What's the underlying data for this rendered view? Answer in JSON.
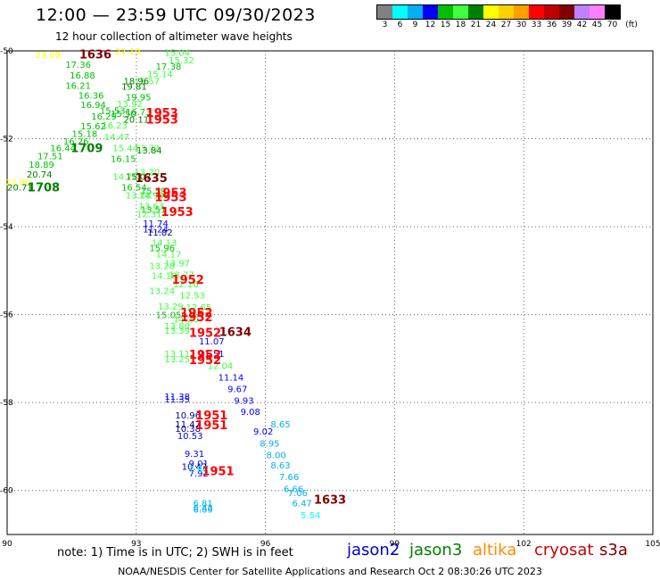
{
  "title": "12:00 — 23:59 UTC 09/30/2023",
  "subtitle": "12 hour collection of altimeter wave heights",
  "scale": {
    "colors": [
      "#808080",
      "#00ffff",
      "#00b0f0",
      "#0000ff",
      "#00c000",
      "#40ff40",
      "#008000",
      "#ffff00",
      "#ffd000",
      "#ffa000",
      "#ff0000",
      "#c00000",
      "#800000",
      "#c080ff",
      "#ff80ff",
      "#000000"
    ],
    "labels": [
      "3",
      "6",
      "9",
      "12",
      "15",
      "18",
      "21",
      "24",
      "27",
      "30",
      "33",
      "36",
      "39",
      "42",
      "45",
      "70"
    ],
    "unit": "(ft)"
  },
  "axes": {
    "x_ticks": [
      "90",
      "93",
      "96",
      "99",
      "102",
      "105"
    ],
    "y_ticks": [
      "-50",
      "-52",
      "-54",
      "-56",
      "-58",
      "-60"
    ]
  },
  "observations": [
    {
      "t": "23.09",
      "x": 90.95,
      "y": -50.08,
      "c": "#ffff00"
    },
    {
      "t": "22.19",
      "x": 92.8,
      "y": -50.0,
      "c": "#ffff00"
    },
    {
      "t": "15.04",
      "x": 93.95,
      "y": -50.03,
      "c": "#40ff40"
    },
    {
      "t": "15.32",
      "x": 94.05,
      "y": -50.2,
      "c": "#40ff40"
    },
    {
      "t": "17.36",
      "x": 91.65,
      "y": -50.3,
      "c": "#00c000"
    },
    {
      "t": "17.38",
      "x": 93.75,
      "y": -50.35,
      "c": "#00c000"
    },
    {
      "t": "15.14",
      "x": 93.55,
      "y": -50.52,
      "c": "#40ff40"
    },
    {
      "t": "16.88",
      "x": 91.75,
      "y": -50.55,
      "c": "#00c000"
    },
    {
      "t": "15.57",
      "x": 93.25,
      "y": -50.68,
      "c": "#40ff40"
    },
    {
      "t": "16.21",
      "x": 91.65,
      "y": -50.78,
      "c": "#00c000"
    },
    {
      "t": "18.96",
      "x": 93.0,
      "y": -50.68,
      "c": "#008000"
    },
    {
      "t": "19.81",
      "x": 92.95,
      "y": -50.8,
      "c": "#008000"
    },
    {
      "t": "16.36",
      "x": 91.95,
      "y": -51.0,
      "c": "#00c000"
    },
    {
      "t": "19.95",
      "x": 93.05,
      "y": -51.05,
      "c": "#00c000"
    },
    {
      "t": "13.92",
      "x": 92.85,
      "y": -51.2,
      "c": "#40ff40"
    },
    {
      "t": "16.94",
      "x": 92.0,
      "y": -51.22,
      "c": "#00c000"
    },
    {
      "t": "15.53",
      "x": 92.45,
      "y": -51.35,
      "c": "#00c000"
    },
    {
      "t": "16.73",
      "x": 93.05,
      "y": -51.38,
      "c": "#00c000"
    },
    {
      "t": "16.29",
      "x": 92.25,
      "y": -51.48,
      "c": "#00c000"
    },
    {
      "t": "15.50",
      "x": 92.7,
      "y": -51.42,
      "c": "#00c000"
    },
    {
      "t": "20.11",
      "x": 93.0,
      "y": -51.55,
      "c": "#008000"
    },
    {
      "t": "16.23",
      "x": 92.5,
      "y": -51.68,
      "c": "#40ff40"
    },
    {
      "t": "15.62",
      "x": 92.0,
      "y": -51.7,
      "c": "#00c000"
    },
    {
      "t": "15.18",
      "x": 91.8,
      "y": -51.88,
      "c": "#00c000"
    },
    {
      "t": "14.47",
      "x": 92.55,
      "y": -51.95,
      "c": "#40ff40"
    },
    {
      "t": "16.26",
      "x": 91.6,
      "y": -52.05,
      "c": "#00c000"
    },
    {
      "t": "16.44",
      "x": 91.3,
      "y": -52.2,
      "c": "#00c000"
    },
    {
      "t": "15.44",
      "x": 92.75,
      "y": -52.2,
      "c": "#40ff40"
    },
    {
      "t": "13.72",
      "x": 93.25,
      "y": -52.2,
      "c": "#40ff40"
    },
    {
      "t": "13.84",
      "x": 93.3,
      "y": -52.25,
      "c": "#008000"
    },
    {
      "t": "17.51",
      "x": 91.0,
      "y": -52.38,
      "c": "#00c000"
    },
    {
      "t": "16.15",
      "x": 92.7,
      "y": -52.45,
      "c": "#00c000"
    },
    {
      "t": "18.89",
      "x": 90.8,
      "y": -52.58,
      "c": "#00c000"
    },
    {
      "t": "20.74",
      "x": 90.75,
      "y": -52.8,
      "c": "#008000"
    },
    {
      "t": "14.78",
      "x": 92.75,
      "y": -52.85,
      "c": "#40ff40"
    },
    {
      "t": "13.20",
      "x": 93.25,
      "y": -52.75,
      "c": "#40ff40"
    },
    {
      "t": "15.07",
      "x": 93.05,
      "y": -52.85,
      "c": "#008000"
    },
    {
      "t": "22.80",
      "x": 90.25,
      "y": -52.98,
      "c": "#ffff00"
    },
    {
      "t": "20.71",
      "x": 90.3,
      "y": -53.1,
      "c": "#008000"
    },
    {
      "t": "16.54",
      "x": 92.95,
      "y": -53.1,
      "c": "#00c000"
    },
    {
      "t": "15.59",
      "x": 93.4,
      "y": -53.18,
      "c": "#00c000"
    },
    {
      "t": "13.18",
      "x": 93.05,
      "y": -53.28,
      "c": "#40ff40"
    },
    {
      "t": "14.90",
      "x": 93.35,
      "y": -53.28,
      "c": "#40ff40"
    },
    {
      "t": "13.63",
      "x": 93.35,
      "y": -53.52,
      "c": "#40ff40"
    },
    {
      "t": "13.51",
      "x": 93.4,
      "y": -53.6,
      "c": "#00c000"
    },
    {
      "t": "12.31",
      "x": 93.3,
      "y": -53.7,
      "c": "#40ff40"
    },
    {
      "t": "11.74",
      "x": 93.45,
      "y": -53.92,
      "c": "#0000ff"
    },
    {
      "t": "11.24",
      "x": 93.45,
      "y": -54.05,
      "c": "#0000ff"
    },
    {
      "t": "11.82",
      "x": 93.55,
      "y": -54.12,
      "c": "#00008b"
    },
    {
      "t": "14.13",
      "x": 93.65,
      "y": -54.35,
      "c": "#40ff40"
    },
    {
      "t": "15.96",
      "x": 93.6,
      "y": -54.48,
      "c": "#00c000"
    },
    {
      "t": "14.17",
      "x": 93.75,
      "y": -54.62,
      "c": "#40ff40"
    },
    {
      "t": "13.97",
      "x": 93.95,
      "y": -54.82,
      "c": "#40ff40"
    },
    {
      "t": "13.28",
      "x": 93.6,
      "y": -54.88,
      "c": "#40ff40"
    },
    {
      "t": "14.10",
      "x": 93.65,
      "y": -55.1,
      "c": "#40ff40"
    },
    {
      "t": "13.77",
      "x": 94.05,
      "y": -55.08,
      "c": "#40ff40"
    },
    {
      "t": "12.16",
      "x": 94.15,
      "y": -55.3,
      "c": "#40ff40"
    },
    {
      "t": "13.24",
      "x": 93.6,
      "y": -55.45,
      "c": "#40ff40"
    },
    {
      "t": "12.53",
      "x": 94.3,
      "y": -55.55,
      "c": "#40ff40"
    },
    {
      "t": "13.29",
      "x": 93.8,
      "y": -55.8,
      "c": "#40ff40"
    },
    {
      "t": "12.65",
      "x": 94.45,
      "y": -55.82,
      "c": "#40ff40"
    },
    {
      "t": "15.05",
      "x": 93.75,
      "y": -56.0,
      "c": "#00c000"
    },
    {
      "t": "14.20",
      "x": 94.15,
      "y": -56.1,
      "c": "#40ff40"
    },
    {
      "t": "13.80",
      "x": 93.95,
      "y": -56.25,
      "c": "#40ff40"
    },
    {
      "t": "13.39",
      "x": 93.95,
      "y": -56.35,
      "c": "#40ff40"
    },
    {
      "t": "11.07",
      "x": 94.75,
      "y": -56.6,
      "c": "#0000ff"
    },
    {
      "t": "13.11",
      "x": 93.95,
      "y": -56.88,
      "c": "#40ff40"
    },
    {
      "t": "13.25",
      "x": 93.95,
      "y": -57.0,
      "c": "#40ff40"
    },
    {
      "t": "11.51",
      "x": 94.75,
      "y": -56.88,
      "c": "#0000ff"
    },
    {
      "t": "12.04",
      "x": 94.95,
      "y": -57.15,
      "c": "#40ff40"
    },
    {
      "t": "11.14",
      "x": 95.2,
      "y": -57.42,
      "c": "#0000ff"
    },
    {
      "t": "9.67",
      "x": 95.35,
      "y": -57.68,
      "c": "#0000ff"
    },
    {
      "t": "11.38",
      "x": 93.95,
      "y": -57.85,
      "c": "#0000ff"
    },
    {
      "t": "11.35",
      "x": 93.95,
      "y": -57.92,
      "c": "#0000ff"
    },
    {
      "t": "9.93",
      "x": 95.5,
      "y": -57.95,
      "c": "#0000ff"
    },
    {
      "t": "9.08",
      "x": 95.65,
      "y": -58.2,
      "c": "#0000ff"
    },
    {
      "t": "10.96",
      "x": 94.2,
      "y": -58.28,
      "c": "#00008b"
    },
    {
      "t": "11.47",
      "x": 94.2,
      "y": -58.48,
      "c": "#00008b"
    },
    {
      "t": "8.65",
      "x": 96.35,
      "y": -58.48,
      "c": "#00b0f0"
    },
    {
      "t": "10.38",
      "x": 94.2,
      "y": -58.58,
      "c": "#00008b"
    },
    {
      "t": "9.02",
      "x": 95.95,
      "y": -58.65,
      "c": "#0000ff"
    },
    {
      "t": "10.53",
      "x": 94.25,
      "y": -58.75,
      "c": "#0000ff"
    },
    {
      "t": "8.95",
      "x": 96.1,
      "y": -58.92,
      "c": "#00b0f0"
    },
    {
      "t": "9.31",
      "x": 94.35,
      "y": -59.15,
      "c": "#0000ff"
    },
    {
      "t": "8.00",
      "x": 96.25,
      "y": -59.18,
      "c": "#00b0f0"
    },
    {
      "t": "9.01",
      "x": 94.45,
      "y": -59.38,
      "c": "#0000ff"
    },
    {
      "t": "10.47",
      "x": 94.35,
      "y": -59.45,
      "c": "#00008b"
    },
    {
      "t": "8.63",
      "x": 96.35,
      "y": -59.42,
      "c": "#00b0f0"
    },
    {
      "t": "7.92",
      "x": 94.45,
      "y": -59.6,
      "c": "#0000ff"
    },
    {
      "t": "7.66",
      "x": 96.55,
      "y": -59.68,
      "c": "#00b0f0"
    },
    {
      "t": "7.88",
      "x": 94.45,
      "y": -59.5,
      "c": "#00ffff"
    },
    {
      "t": "6.66",
      "x": 96.65,
      "y": -59.95,
      "c": "#00b0f0"
    },
    {
      "t": "7.06",
      "x": 96.75,
      "y": -60.05,
      "c": "#00b0f0"
    },
    {
      "t": "6.47",
      "x": 96.85,
      "y": -60.28,
      "c": "#00b0f0"
    },
    {
      "t": "6.81",
      "x": 94.55,
      "y": -60.28,
      "c": "#00b0f0"
    },
    {
      "t": "6.42",
      "x": 94.55,
      "y": -60.38,
      "c": "#00b0f0"
    },
    {
      "t": "6.69",
      "x": 94.55,
      "y": -60.42,
      "c": "#00b0f0"
    },
    {
      "t": "5.54",
      "x": 97.05,
      "y": -60.55,
      "c": "#00ffff"
    }
  ],
  "pass_times": [
    {
      "t": "1636",
      "x": 92.05,
      "y": -50.07,
      "c": "#800000"
    },
    {
      "t": "1953",
      "x": 93.6,
      "y": -51.4,
      "c": "#ff0000"
    },
    {
      "t": "1953",
      "x": 93.6,
      "y": -51.55,
      "c": "#ff0000"
    },
    {
      "t": "1709",
      "x": 91.85,
      "y": -52.2,
      "c": "#008000"
    },
    {
      "t": "1635",
      "x": 93.35,
      "y": -52.88,
      "c": "#800000"
    },
    {
      "t": "1708",
      "x": 90.85,
      "y": -53.1,
      "c": "#008000"
    },
    {
      "t": "1953",
      "x": 93.8,
      "y": -53.22,
      "c": "#ff0000"
    },
    {
      "t": "1953",
      "x": 93.8,
      "y": -53.32,
      "c": "#ff0000"
    },
    {
      "t": "1953",
      "x": 93.95,
      "y": -53.65,
      "c": "#ff0000"
    },
    {
      "t": "1952",
      "x": 94.2,
      "y": -55.2,
      "c": "#ff0000"
    },
    {
      "t": "1952",
      "x": 94.4,
      "y": -55.95,
      "c": "#ff0000"
    },
    {
      "t": "1952",
      "x": 94.4,
      "y": -56.05,
      "c": "#ff0000"
    },
    {
      "t": "1952",
      "x": 94.6,
      "y": -56.4,
      "c": "#ff0000"
    },
    {
      "t": "1634",
      "x": 95.3,
      "y": -56.38,
      "c": "#800000"
    },
    {
      "t": "1952",
      "x": 94.6,
      "y": -56.9,
      "c": "#ff0000"
    },
    {
      "t": "1952",
      "x": 94.6,
      "y": -57.02,
      "c": "#ff0000"
    },
    {
      "t": "1951",
      "x": 94.75,
      "y": -58.28,
      "c": "#ff0000"
    },
    {
      "t": "1951",
      "x": 94.75,
      "y": -58.5,
      "c": "#ff0000"
    },
    {
      "t": "1951",
      "x": 94.9,
      "y": -59.55,
      "c": "#ff0000"
    },
    {
      "t": "1633",
      "x": 97.5,
      "y": -60.2,
      "c": "#800000"
    }
  ],
  "note": "note: 1) Time is in UTC; 2) SWH is in feet",
  "legend": [
    {
      "label": "jason2",
      "color": "#0000cc"
    },
    {
      "label": "jason3",
      "color": "#008000"
    },
    {
      "label": "altika",
      "color": "#ff8c00"
    },
    {
      "label": "cryosat",
      "color": "#cc0000"
    },
    {
      "label": "s3a",
      "color": "#800000"
    }
  ],
  "footer": "NOAA/NESDIS Center for Satellite Applications and Research   Oct  2 08:30:26 UTC 2023"
}
